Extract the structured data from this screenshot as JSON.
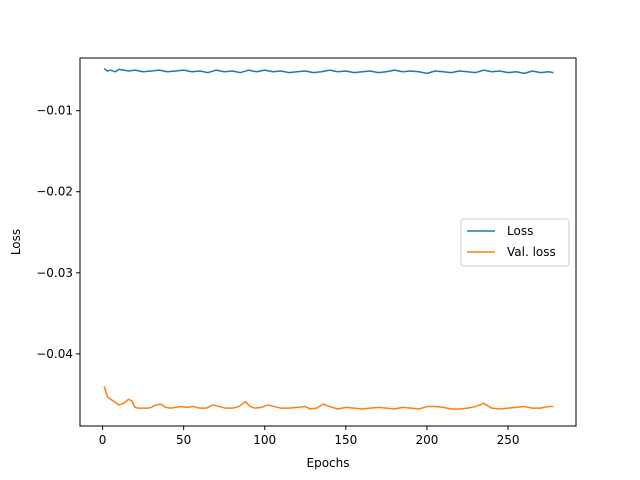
{
  "chart_data": {
    "type": "line",
    "xlabel": "Epochs",
    "ylabel": "Loss",
    "xlim": [
      -13.9,
      291.9
    ],
    "ylim": [
      -0.0489,
      -0.0035
    ],
    "xticks": [
      0,
      50,
      100,
      150,
      200,
      250
    ],
    "yticks": [
      -0.04,
      -0.03,
      -0.02,
      -0.01
    ],
    "xtick_labels": [
      "0",
      "50",
      "100",
      "150",
      "200",
      "250"
    ],
    "ytick_labels": [
      "−0.04",
      "−0.03",
      "−0.02",
      "−0.01"
    ],
    "grid": false,
    "legend_position": "center-right",
    "series": [
      {
        "name": "Loss",
        "color": "#1f77b4",
        "x": [
          1,
          3,
          5,
          8,
          10,
          13,
          16,
          20,
          25,
          30,
          35,
          40,
          45,
          50,
          55,
          60,
          65,
          70,
          75,
          80,
          85,
          90,
          95,
          100,
          105,
          110,
          115,
          120,
          125,
          130,
          135,
          140,
          145,
          150,
          155,
          160,
          165,
          170,
          175,
          180,
          185,
          190,
          195,
          200,
          205,
          210,
          215,
          220,
          225,
          230,
          235,
          240,
          245,
          250,
          255,
          260,
          265,
          270,
          275,
          278
        ],
        "y": [
          -0.0048,
          -0.0051,
          -0.005,
          -0.0052,
          -0.0049,
          -0.005,
          -0.0051,
          -0.005,
          -0.0052,
          -0.0051,
          -0.005,
          -0.0052,
          -0.0051,
          -0.005,
          -0.0052,
          -0.0051,
          -0.0053,
          -0.005,
          -0.0052,
          -0.0051,
          -0.0053,
          -0.005,
          -0.0052,
          -0.005,
          -0.0052,
          -0.0051,
          -0.0053,
          -0.0052,
          -0.0051,
          -0.0053,
          -0.0052,
          -0.005,
          -0.0052,
          -0.0051,
          -0.0053,
          -0.0052,
          -0.0051,
          -0.0053,
          -0.0052,
          -0.005,
          -0.0052,
          -0.0051,
          -0.0052,
          -0.0054,
          -0.0051,
          -0.0052,
          -0.0053,
          -0.0051,
          -0.0052,
          -0.0053,
          -0.005,
          -0.0052,
          -0.0051,
          -0.0053,
          -0.0052,
          -0.0054,
          -0.0051,
          -0.0053,
          -0.0052,
          -0.0053
        ]
      },
      {
        "name": "Val. loss",
        "color": "#ff7f0e",
        "x": [
          1,
          3,
          5,
          8,
          10,
          13,
          16,
          18,
          20,
          22,
          25,
          28,
          30,
          33,
          36,
          39,
          42,
          45,
          48,
          52,
          56,
          60,
          64,
          68,
          72,
          76,
          80,
          84,
          88,
          91,
          94,
          98,
          102,
          106,
          110,
          115,
          120,
          125,
          128,
          132,
          136,
          140,
          145,
          150,
          155,
          160,
          165,
          170,
          175,
          180,
          185,
          190,
          195,
          200,
          205,
          210,
          215,
          220,
          225,
          230,
          235,
          240,
          245,
          250,
          255,
          260,
          265,
          270,
          275,
          278
        ],
        "y": [
          -0.044,
          -0.0453,
          -0.0456,
          -0.046,
          -0.0463,
          -0.0461,
          -0.0456,
          -0.0458,
          -0.0466,
          -0.0467,
          -0.0467,
          -0.0467,
          -0.0466,
          -0.0463,
          -0.0462,
          -0.0466,
          -0.0467,
          -0.0466,
          -0.0465,
          -0.0466,
          -0.0465,
          -0.0467,
          -0.0467,
          -0.0463,
          -0.0465,
          -0.0467,
          -0.0467,
          -0.0465,
          -0.0459,
          -0.0465,
          -0.0467,
          -0.0466,
          -0.0463,
          -0.0465,
          -0.0467,
          -0.0467,
          -0.0466,
          -0.0465,
          -0.0468,
          -0.0467,
          -0.0462,
          -0.0465,
          -0.0468,
          -0.0466,
          -0.0467,
          -0.0468,
          -0.0467,
          -0.0466,
          -0.0467,
          -0.0468,
          -0.0466,
          -0.0467,
          -0.0468,
          -0.0465,
          -0.0465,
          -0.0466,
          -0.0468,
          -0.0468,
          -0.0467,
          -0.0465,
          -0.0461,
          -0.0467,
          -0.0468,
          -0.0467,
          -0.0466,
          -0.0465,
          -0.0467,
          -0.0467,
          -0.0465,
          -0.0465
        ]
      }
    ]
  }
}
